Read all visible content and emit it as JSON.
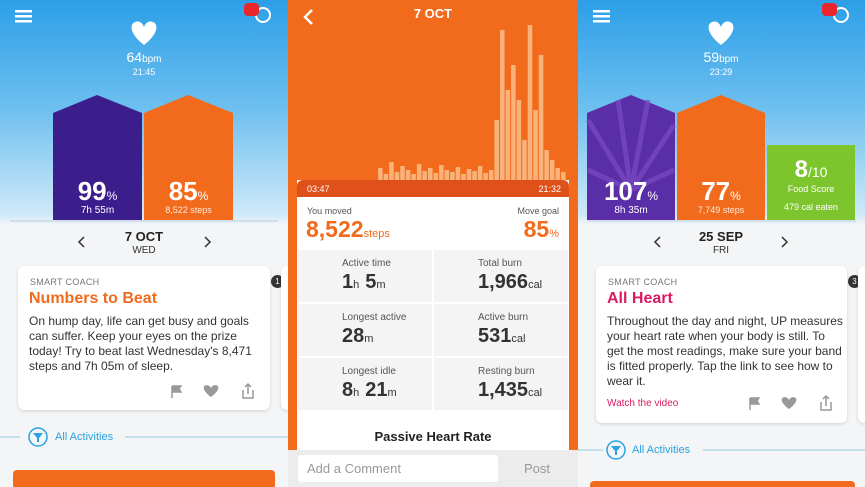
{
  "left_panel": {
    "heart_rate": "64",
    "heart_unit": "bpm",
    "heart_time": "21:45",
    "sleep": {
      "value": "99",
      "unit": "%",
      "detail": "7h 55m"
    },
    "move": {
      "value": "85",
      "unit": "%",
      "detail": "8,522 steps"
    },
    "date": "7 OCT",
    "weekday": "WED",
    "card": {
      "kicker": "SMART COACH",
      "title": "Numbers to Beat",
      "badge": "1",
      "body": "On hump day, life can get busy and goals can suffer. Keep your eyes on the prize today! Try to beat last Wednesday's 8,471 steps and 7h 05m of sleep."
    },
    "activities": "All Activities"
  },
  "detail_panel": {
    "date": "7 OCT",
    "activity_bars": [
      0,
      0,
      0,
      0,
      0,
      0,
      0,
      0,
      0,
      0,
      0,
      0,
      0,
      0,
      12,
      6,
      18,
      8,
      14,
      10,
      6,
      16,
      9,
      12,
      7,
      15,
      10,
      8,
      13,
      6,
      11,
      9,
      14,
      7,
      10,
      60,
      150,
      90,
      115,
      80,
      40,
      155,
      70,
      125,
      30,
      20,
      12,
      8
    ],
    "start_time": "03:47",
    "end_time": "21:32",
    "moved_label": "You moved",
    "moved_value": "8,522",
    "moved_unit": "steps",
    "goal_label": "Move goal",
    "goal_value": "85",
    "goal_unit": "%",
    "stats": [
      {
        "label": "Active time",
        "parts": [
          "1",
          "h",
          "5",
          "m"
        ]
      },
      {
        "label": "Total burn",
        "parts": [
          "1,966",
          "cal"
        ]
      },
      {
        "label": "Longest active",
        "parts": [
          "28",
          "m"
        ]
      },
      {
        "label": "Active burn",
        "parts": [
          "531",
          "cal"
        ]
      },
      {
        "label": "Longest idle",
        "parts": [
          "8",
          "h",
          "21",
          "m"
        ]
      },
      {
        "label": "Resting burn",
        "parts": [
          "1,435",
          "cal"
        ]
      }
    ],
    "section": "Passive Heart Rate",
    "comment_placeholder": "Add a Comment",
    "post": "Post"
  },
  "right_panel": {
    "heart_rate": "59",
    "heart_unit": "bpm",
    "heart_time": "23:29",
    "sleep": {
      "value": "107",
      "unit": "%",
      "detail": "8h 35m"
    },
    "move": {
      "value": "77",
      "unit": "%",
      "detail": "7,749 steps"
    },
    "food": {
      "value": "8",
      "unit": "/10",
      "label": "Food Score",
      "detail": "479 cal eaten"
    },
    "date": "25 SEP",
    "weekday": "FRI",
    "card": {
      "kicker": "SMART COACH",
      "title": "All Heart",
      "badge": "3",
      "body": "Throughout the day and night, UP measures your heart rate when your body is still. To get the most readings, make sure your band is fitted properly. Tap the link to see how to wear it.",
      "link": "Watch the video"
    },
    "activities": "All Activities"
  }
}
